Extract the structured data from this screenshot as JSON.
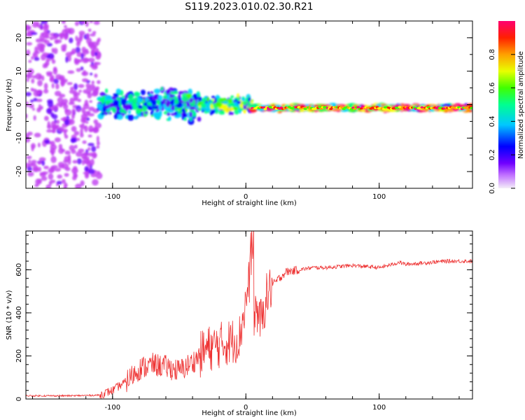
{
  "title": "S119.2023.010.02.30.R21",
  "chart_data": [
    {
      "type": "heatmap",
      "title": "S119.2023.010.02.30.R21",
      "xlabel": "Height of straight line (km)",
      "ylabel": "Frequency (Hz)",
      "xlim": [
        -165,
        170
      ],
      "ylim": [
        -25,
        25
      ],
      "x_ticks": [
        -100,
        0,
        100
      ],
      "y_ticks": [
        -20,
        -10,
        0,
        10,
        20
      ],
      "colorbar": {
        "label": "Normalized spectral amplitude",
        "range": [
          0,
          1
        ],
        "ticks": [
          0.0,
          0.2,
          0.4,
          0.6,
          0.8
        ],
        "colors": [
          "#f0f0f0",
          "#c040f0",
          "#6000ff",
          "#0000ff",
          "#00d0ff",
          "#00ff80",
          "#40ff00",
          "#ffff00",
          "#ffa000",
          "#ff2000",
          "#ff0080"
        ]
      },
      "regions": [
        {
          "x": [
            -165,
            -110
          ],
          "freq_spread": 25,
          "amplitude": 0.15,
          "description": "scattered noise"
        },
        {
          "x": [
            -110,
            -35
          ],
          "freq_spread": 6,
          "amplitude": 0.45
        },
        {
          "x": [
            -35,
            5
          ],
          "freq_spread": 3,
          "amplitude": 0.6
        },
        {
          "x": [
            5,
            170
          ],
          "freq_center": -1,
          "freq_spread": 1,
          "amplitude": 0.9
        }
      ]
    },
    {
      "type": "line",
      "xlabel": "Height of straight line (km)",
      "ylabel": "SNR (10 * v/v)",
      "xlim": [
        -165,
        170
      ],
      "ylim": [
        0,
        780
      ],
      "x_ticks": [
        -100,
        0,
        100
      ],
      "y_ticks": [
        0,
        200,
        400,
        600
      ],
      "color": "#ee3333",
      "series": [
        {
          "name": "SNR",
          "x": [
            -165,
            -150,
            -130,
            -110,
            -100,
            -90,
            -80,
            -70,
            -60,
            -50,
            -40,
            -30,
            -20,
            -10,
            -5,
            0,
            3,
            5,
            8,
            12,
            15,
            20,
            25,
            30,
            40,
            50,
            60,
            70,
            80,
            90,
            100,
            110,
            115,
            120,
            130,
            140,
            150,
            160,
            170
          ],
          "y": [
            15,
            15,
            15,
            18,
            40,
            80,
            140,
            160,
            150,
            130,
            170,
            230,
            250,
            270,
            280,
            450,
            560,
            380,
            420,
            350,
            470,
            530,
            560,
            590,
            600,
            610,
            610,
            615,
            620,
            615,
            610,
            625,
            635,
            625,
            630,
            635,
            640,
            640,
            640
          ]
        }
      ]
    }
  ]
}
